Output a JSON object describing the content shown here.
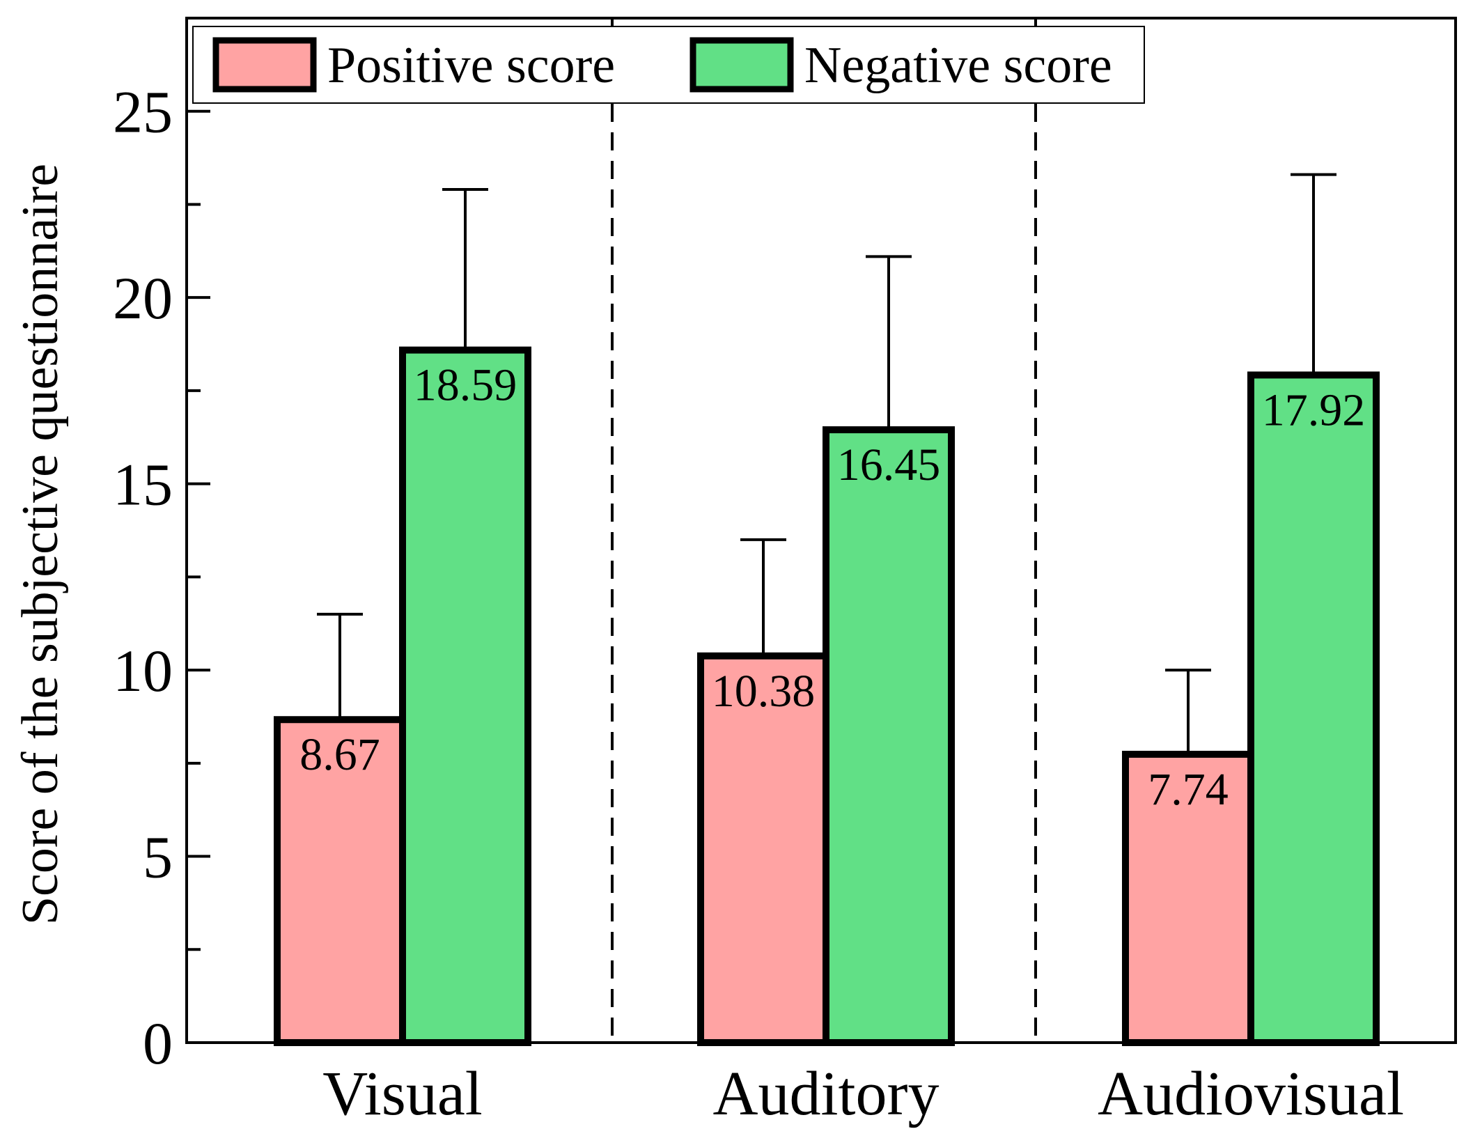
{
  "chart_data": {
    "type": "bar",
    "title": "",
    "xlabel": "",
    "ylabel": "Score of the subjective questionnaire",
    "ylim": [
      0,
      27.5
    ],
    "yticks": [
      0,
      5,
      10,
      15,
      20,
      25
    ],
    "ytick_labels": [
      "0",
      "5",
      "10",
      "15",
      "20",
      "25"
    ],
    "minor_ticks": [
      2.5,
      7.5,
      12.5,
      17.5,
      22.5
    ],
    "categories": [
      "Visual",
      "Auditory",
      "Audiovisual"
    ],
    "grid": false,
    "legend_position": "top-left",
    "series": [
      {
        "name": "Positive score",
        "color": "#ffa3a3",
        "values": [
          8.67,
          10.38,
          7.74
        ],
        "labels": [
          "8.67",
          "10.38",
          "7.74"
        ],
        "error_top": [
          11.5,
          13.5,
          10.0
        ]
      },
      {
        "name": "Negative score",
        "color": "#61e086",
        "values": [
          18.59,
          16.45,
          17.92
        ],
        "labels": [
          "18.59",
          "16.45",
          "17.92"
        ],
        "error_top": [
          22.9,
          21.1,
          23.3
        ]
      }
    ]
  }
}
